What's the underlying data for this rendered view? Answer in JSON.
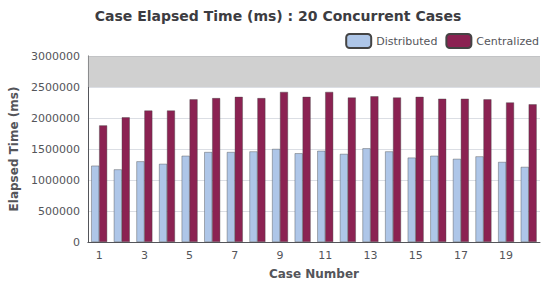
{
  "chart_data": {
    "type": "bar",
    "title": "Case Elapsed Time (ms) : 20 Concurrent Cases",
    "x_label": "Case Number",
    "y_label": "Elapsed Time (ms)",
    "categories": [
      "1",
      null,
      "3",
      null,
      "5",
      null,
      "7",
      null,
      "9",
      null,
      "11",
      null,
      "13",
      null,
      "15",
      null,
      "17",
      null,
      "19",
      null
    ],
    "series": [
      {
        "name": "Distributed",
        "color": "#aec6e8",
        "values": [
          1230000,
          1170000,
          1300000,
          1260000,
          1390000,
          1450000,
          1450000,
          1460000,
          1500000,
          1430000,
          1470000,
          1420000,
          1510000,
          1460000,
          1360000,
          1390000,
          1340000,
          1380000,
          1290000,
          1210000
        ]
      },
      {
        "name": "Centralized",
        "color": "#8b2252",
        "values": [
          1880000,
          2010000,
          2120000,
          2120000,
          2300000,
          2320000,
          2340000,
          2320000,
          2420000,
          2340000,
          2420000,
          2330000,
          2350000,
          2330000,
          2340000,
          2310000,
          2310000,
          2300000,
          2250000,
          2220000
        ]
      }
    ],
    "shaded_region": [
      2500000,
      3000000
    ],
    "ylim": [
      0,
      3000000
    ],
    "yticks": [
      0,
      500000,
      1000000,
      1500000,
      2000000,
      2500000,
      3000000
    ],
    "grid": true,
    "legend": "upper right"
  }
}
